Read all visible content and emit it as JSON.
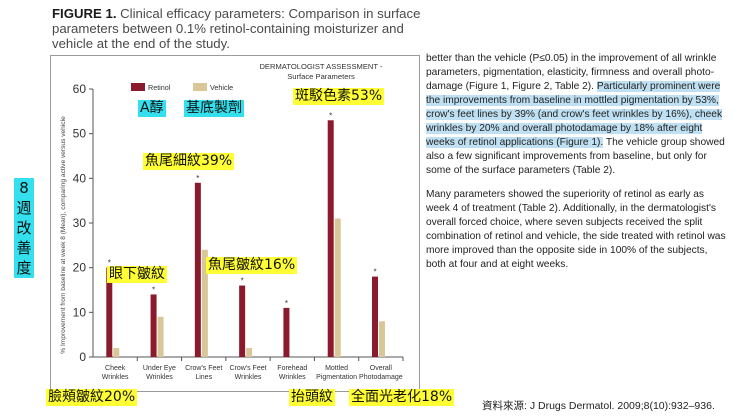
{
  "figure": {
    "label": "FIGURE 1.",
    "caption": "Clinical efficacy parameters: Comparison in surface parameters between 0.1% retinol-containing moisturizer and vehicle at the end of the study."
  },
  "chart_data": {
    "type": "bar",
    "title": "DERMATOLOGIST ASSESSMENT -",
    "subtitle": "Surface Parameters",
    "ylabel": "% Improvement from baseline at week 8 (Mean), comparing active versus vehicle",
    "ylim": [
      0,
      60
    ],
    "yticks": [
      0,
      10,
      20,
      30,
      40,
      50,
      60
    ],
    "categories": [
      [
        "Cheek",
        "Wrinkles"
      ],
      [
        "Under Eye",
        "Wrinkles"
      ],
      [
        "Crow's Feet",
        "Lines"
      ],
      [
        "Crow's Feet",
        "Wrinkles"
      ],
      [
        "Forehead",
        "Wrinkles"
      ],
      [
        "Mottled",
        "Pigmentation"
      ],
      [
        "Overall",
        "Photodamage"
      ]
    ],
    "series": [
      {
        "name": "Retinol",
        "color": "#8b1a2c",
        "values": [
          20,
          14,
          39,
          16,
          11,
          53,
          18
        ]
      },
      {
        "name": "Vehicle",
        "color": "#d9c79a",
        "values": [
          2,
          9,
          24,
          2,
          0,
          31,
          8
        ]
      }
    ],
    "significance_marker": "*",
    "significant": [
      true,
      true,
      true,
      true,
      true,
      true,
      true
    ],
    "legend_position": "top-left",
    "grid": false
  },
  "body": {
    "p1_a": "better than the vehicle (P≤0.05) in the improvement of all wrinkle parameters, pigmentation, elasticity, firmness and overall photo-damage (Figure 1, Figure 2, Table 2). ",
    "p1_highlight": "Particularly prominent were the improvements from baseline in mottled pigmentation by 53%, crow's feet lines by 39% (and crow's feet wrinkles by 16%), cheek wrinkles by 20% and overall photodamage by 18% after eight weeks of retinol applications (Figure 1).",
    "p1_b": " The vehicle group showed also a few significant improvements from baseline, but only for some of the surface parameters (Table 2).",
    "p2": "Many parameters showed the superiority of retinol as early as week 4 of treatment (Table 2). Additionally, in the dermatologist's overall forced choice, where seven subjects received the split combination of retinol and vehicle, the side treated with retinol was more improved than the opposite side in 100% of the subjects, both at four and at eight weeks."
  },
  "annotations": {
    "retinol_cn": "A醇",
    "vehicle_cn": "基底製劑",
    "mottled_cn": "斑駁色素53%",
    "crows_lines_cn": "魚尾細紋39%",
    "under_eye_cn": "眼下皺紋",
    "crows_wrinkles_cn": "魚尾皺紋16%",
    "cheek_cn": "臉頰皺紋20%",
    "forehead_cn": "抬頭紋",
    "overall_cn": "全面光老化18%",
    "week8_chars": [
      "8",
      "週",
      "改",
      "善",
      "度"
    ]
  },
  "source": "資料來源: J Drugs Dermatol. 2009;8(10):932–936."
}
